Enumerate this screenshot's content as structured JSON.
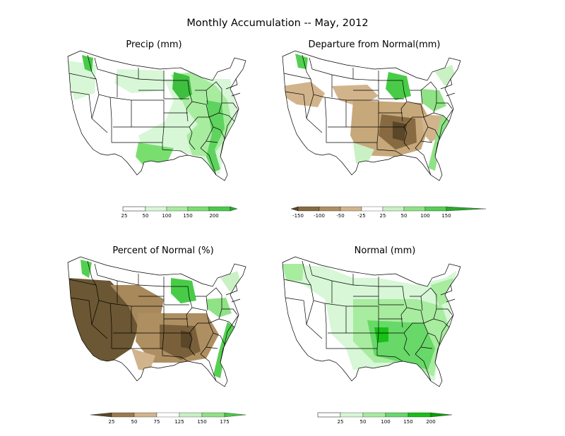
{
  "title": "Monthly Accumulation -- May, 2012",
  "panels": [
    {
      "title": "Precip (mm)",
      "legend": {
        "ticks": [
          "25",
          "50",
          "100",
          "150",
          "200"
        ],
        "colors": [
          "#ffffff",
          "#d7f7d7",
          "#a8ec9f",
          "#78df6f",
          "#48cc48",
          "#2aa82a"
        ]
      }
    },
    {
      "title": "Departure from Normal(mm)",
      "legend": {
        "ticks": [
          "-150",
          "-100",
          "-50",
          "-25",
          "25",
          "50",
          "100",
          "150"
        ],
        "colors": [
          "#5a4628",
          "#876a41",
          "#ae8f62",
          "#d2b48c",
          "#ffffff",
          "#c9f1c4",
          "#8fe285",
          "#54cf52",
          "#2aa82a"
        ]
      }
    },
    {
      "title": "Percent of Normal (%)",
      "legend": {
        "ticks": [
          "25",
          "50",
          "75",
          "125",
          "150",
          "175"
        ],
        "colors": [
          "#5a4628",
          "#9b7a52",
          "#d2b48c",
          "#ffffff",
          "#c9f1c4",
          "#8fe285",
          "#4ac84a"
        ]
      }
    },
    {
      "title": "Normal (mm)",
      "legend": {
        "ticks": [
          "25",
          "50",
          "100",
          "150",
          "200"
        ],
        "colors": [
          "#ffffff",
          "#d7f7d7",
          "#a8ec9f",
          "#68d868",
          "#18c018",
          "#0b9b0b"
        ]
      }
    }
  ]
}
